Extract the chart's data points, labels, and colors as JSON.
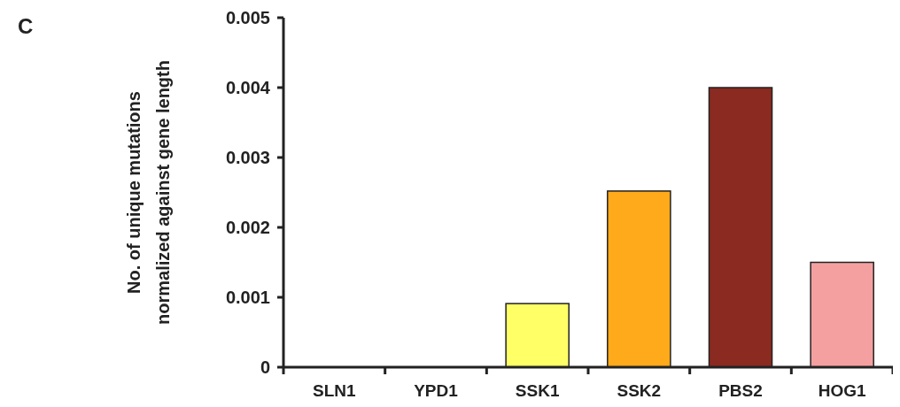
{
  "chart_data": {
    "type": "bar",
    "ylabel": "No. of unique mutations\nnormalized against gene length",
    "annotations": [
      "C"
    ],
    "categories": [
      "SLN1",
      "YPD1",
      "SSK1",
      "SSK2",
      "PBS2",
      "HOG1"
    ],
    "values": [
      0,
      0,
      0.00091,
      0.00252,
      0.004,
      0.0015
    ],
    "colors": [
      "#ffff66",
      "#ffff66",
      "#ffff66",
      "#ffaa1a",
      "#8b2a20",
      "#f5a0a0"
    ],
    "ylim": [
      0,
      0.005
    ],
    "yticks": [
      0,
      0.001,
      0.002,
      0.003,
      0.004,
      0.005
    ],
    "grid": false
  }
}
